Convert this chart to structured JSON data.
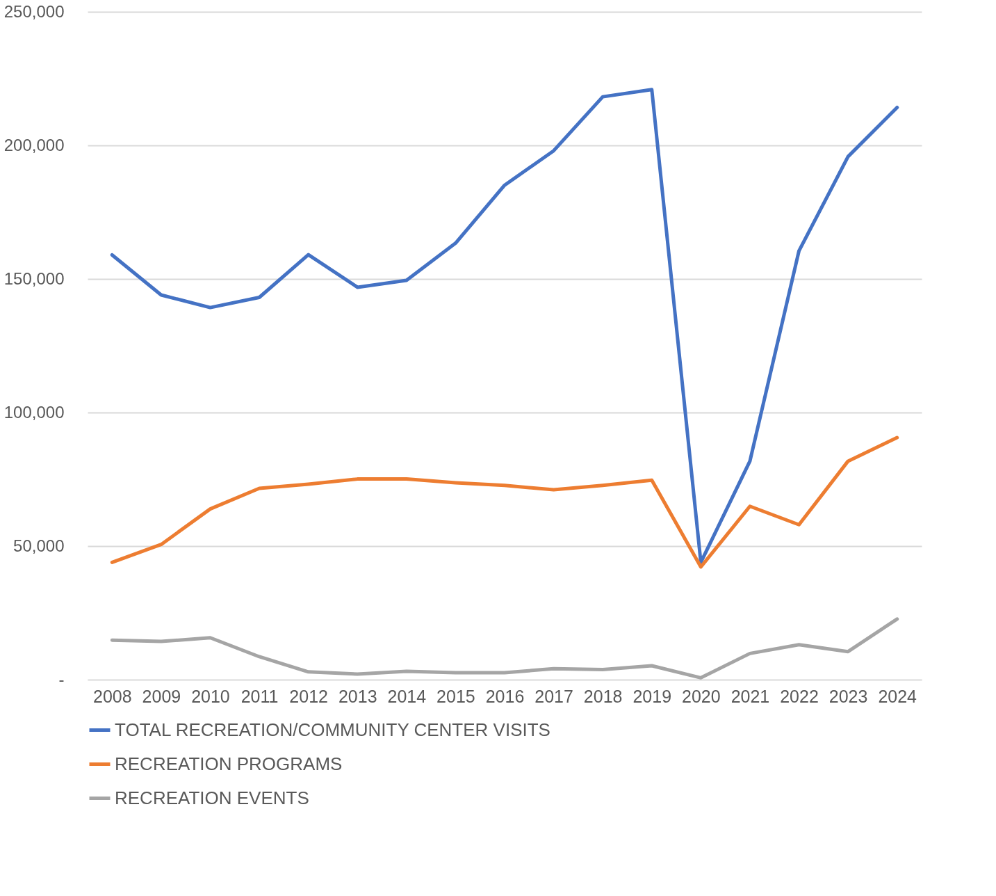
{
  "chart_data": {
    "type": "line",
    "categories": [
      "2008",
      "2009",
      "2010",
      "2011",
      "2012",
      "2013",
      "2014",
      "2015",
      "2016",
      "2017",
      "2018",
      "2019",
      "2020",
      "2021",
      "2022",
      "2023",
      "2024"
    ],
    "series": [
      {
        "name": "TOTAL RECREATION/COMMUNITY CENTER VISITS",
        "color": "#4472c4",
        "values": [
          159000,
          144000,
          139300,
          143100,
          159100,
          146900,
          149500,
          163400,
          185100,
          198000,
          218200,
          220900,
          43900,
          81800,
          160500,
          195800,
          214200
        ]
      },
      {
        "name": "RECREATION PROGRAMS",
        "color": "#ed7d31",
        "values": [
          43900,
          50600,
          63900,
          71600,
          73200,
          75100,
          75100,
          73700,
          72700,
          71100,
          72700,
          74700,
          42200,
          64900,
          58000,
          81800,
          90600
        ]
      },
      {
        "name": "RECREATION EVENTS",
        "color": "#a5a5a5",
        "values": [
          14800,
          14300,
          15700,
          8600,
          2900,
          2100,
          3100,
          2600,
          2600,
          4100,
          3800,
          5200,
          700,
          9800,
          13100,
          10500,
          22700
        ]
      }
    ],
    "ylim": [
      0,
      250000
    ],
    "yticks": [
      {
        "value": 0,
        "label": "-"
      },
      {
        "value": 50000,
        "label": "50,000"
      },
      {
        "value": 100000,
        "label": "100,000"
      },
      {
        "value": 150000,
        "label": "150,000"
      },
      {
        "value": 200000,
        "label": "200,000"
      },
      {
        "value": 250000,
        "label": "250,000"
      }
    ],
    "grid": "y",
    "legend": "bottom",
    "marker": "none",
    "line_style": "solid"
  }
}
